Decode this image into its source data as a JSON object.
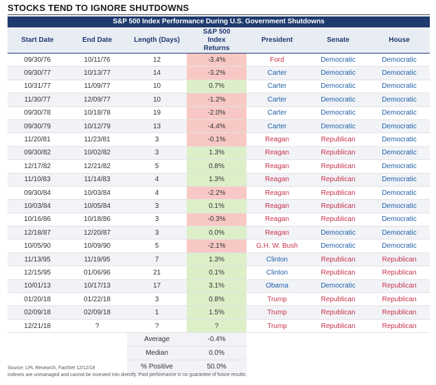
{
  "header": {
    "title": "STOCKS TEND TO IGNORE SHUTDOWNS",
    "subtitle": "S&P 500 Index Performance During U.S. Government Shutdowns"
  },
  "chart_data": {
    "type": "table",
    "columns": [
      "Start Date",
      "End Date",
      "Length (Days)",
      "S&P 500 Index Returns",
      "President",
      "Senate",
      "House"
    ],
    "rows": [
      {
        "start": "09/30/76",
        "end": "10/11/76",
        "days": "12",
        "ret": "-3.4%",
        "pres": "Ford",
        "senate": "Democratic",
        "house": "Democratic"
      },
      {
        "start": "09/30/77",
        "end": "10/13/77",
        "days": "14",
        "ret": "-3.2%",
        "pres": "Carter",
        "senate": "Democratic",
        "house": "Democratic"
      },
      {
        "start": "10/31/77",
        "end": "11/09/77",
        "days": "10",
        "ret": "0.7%",
        "pres": "Carter",
        "senate": "Democratic",
        "house": "Democratic"
      },
      {
        "start": "11/30/77",
        "end": "12/09/77",
        "days": "10",
        "ret": "-1.2%",
        "pres": "Carter",
        "senate": "Democratic",
        "house": "Democratic"
      },
      {
        "start": "09/30/78",
        "end": "10/18/78",
        "days": "19",
        "ret": "-2.0%",
        "pres": "Carter",
        "senate": "Democratic",
        "house": "Democratic"
      },
      {
        "start": "09/30/79",
        "end": "10/12/79",
        "days": "13",
        "ret": "-4.4%",
        "pres": "Carter",
        "senate": "Democratic",
        "house": "Democratic"
      },
      {
        "start": "11/20/81",
        "end": "11/23/81",
        "days": "3",
        "ret": "-0.1%",
        "pres": "Reagan",
        "senate": "Republican",
        "house": "Democratic"
      },
      {
        "start": "09/30/82",
        "end": "10/02/82",
        "days": "3",
        "ret": "1.3%",
        "pres": "Reagan",
        "senate": "Republican",
        "house": "Democratic"
      },
      {
        "start": "12/17/82",
        "end": "12/21/82",
        "days": "5",
        "ret": "0.8%",
        "pres": "Reagan",
        "senate": "Republican",
        "house": "Democratic"
      },
      {
        "start": "11/10/83",
        "end": "11/14/83",
        "days": "4",
        "ret": "1.3%",
        "pres": "Reagan",
        "senate": "Republican",
        "house": "Democratic"
      },
      {
        "start": "09/30/84",
        "end": "10/03/84",
        "days": "4",
        "ret": "-2.2%",
        "pres": "Reagan",
        "senate": "Republican",
        "house": "Democratic"
      },
      {
        "start": "10/03/84",
        "end": "10/05/84",
        "days": "3",
        "ret": "0.1%",
        "pres": "Reagan",
        "senate": "Republican",
        "house": "Democratic"
      },
      {
        "start": "10/16/86",
        "end": "10/18/86",
        "days": "3",
        "ret": "-0.3%",
        "pres": "Reagan",
        "senate": "Republican",
        "house": "Democratic"
      },
      {
        "start": "12/18/87",
        "end": "12/20/87",
        "days": "3",
        "ret": "0.0%",
        "pres": "Reagan",
        "senate": "Democratic",
        "house": "Democratic"
      },
      {
        "start": "10/05/90",
        "end": "10/09/90",
        "days": "5",
        "ret": "-2.1%",
        "pres": "G.H. W. Bush",
        "senate": "Democratic",
        "house": "Democratic"
      },
      {
        "start": "11/13/95",
        "end": "11/19/95",
        "days": "7",
        "ret": "1.3%",
        "pres": "Clinton",
        "senate": "Republican",
        "house": "Republican"
      },
      {
        "start": "12/15/95",
        "end": "01/06/96",
        "days": "21",
        "ret": "0.1%",
        "pres": "Clinton",
        "senate": "Republican",
        "house": "Republican"
      },
      {
        "start": "10/01/13",
        "end": "10/17/13",
        "days": "17",
        "ret": "3.1%",
        "pres": "Obama",
        "senate": "Democratic",
        "house": "Republican"
      },
      {
        "start": "01/20/18",
        "end": "01/22/18",
        "days": "3",
        "ret": "0.8%",
        "pres": "Trump",
        "senate": "Republican",
        "house": "Republican"
      },
      {
        "start": "02/09/18",
        "end": "02/09/18",
        "days": "1",
        "ret": "1.5%",
        "pres": "Trump",
        "senate": "Republican",
        "house": "Republican"
      },
      {
        "start": "12/21/18",
        "end": "?",
        "days": "?",
        "ret": "?",
        "pres": "Trump",
        "senate": "Republican",
        "house": "Republican"
      }
    ],
    "summary": [
      {
        "label": "Average",
        "value": "-0.4%"
      },
      {
        "label": "Median",
        "value": "0.0%"
      },
      {
        "label": "% Positive",
        "value": "50.0%"
      }
    ]
  },
  "colors": {
    "header_bar": "#1f3a6e",
    "negative_fill": "#f8c9c4",
    "positive_fill": "#dcefc8",
    "democratic_text": "#1f5fa8",
    "republican_text": "#c8324a"
  },
  "footer": {
    "source": "Source: LPL Research, FactSet  12/12/18",
    "disclaimer": "Indexes are unmanaged and cannot be invested into directly. Past performance is no guarantee of future results."
  }
}
